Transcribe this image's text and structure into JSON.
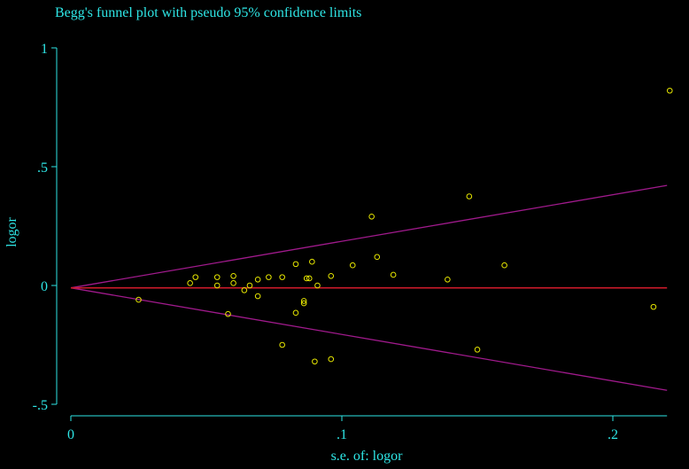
{
  "colors": {
    "background": "#000000",
    "text": "#2ee6e6",
    "axis": "#2ee6e6",
    "points": "#e6e600",
    "pooled_line": "#cc1a2a",
    "ci_lines": "#a01a8c"
  },
  "chart_data": {
    "type": "scatter",
    "title": "Begg's funnel plot with pseudo 95% confidence limits",
    "xlabel": "s.e. of: logor",
    "ylabel": "logor",
    "xlim": [
      0,
      0.22
    ],
    "ylim": [
      -0.5,
      1
    ],
    "x_ticks": [
      0,
      0.1,
      0.2
    ],
    "x_tick_labels": [
      "0",
      ".1",
      ".2"
    ],
    "y_ticks": [
      -0.5,
      0,
      0.5,
      1
    ],
    "y_tick_labels": [
      "-.5",
      "0",
      ".5",
      "1"
    ],
    "grid": false,
    "pooled_estimate": -0.01,
    "confidence_limits": {
      "z": 1.96,
      "from_x": 0,
      "to_x": 0.22
    },
    "points": [
      {
        "x": 0.025,
        "y": -0.06
      },
      {
        "x": 0.044,
        "y": 0.01
      },
      {
        "x": 0.046,
        "y": 0.035
      },
      {
        "x": 0.054,
        "y": 0.035
      },
      {
        "x": 0.054,
        "y": 0.0
      },
      {
        "x": 0.058,
        "y": -0.12
      },
      {
        "x": 0.06,
        "y": 0.04
      },
      {
        "x": 0.06,
        "y": 0.01
      },
      {
        "x": 0.064,
        "y": -0.02
      },
      {
        "x": 0.066,
        "y": 0.0
      },
      {
        "x": 0.069,
        "y": 0.025
      },
      {
        "x": 0.069,
        "y": -0.045
      },
      {
        "x": 0.073,
        "y": 0.035
      },
      {
        "x": 0.078,
        "y": 0.035
      },
      {
        "x": 0.078,
        "y": -0.25
      },
      {
        "x": 0.083,
        "y": 0.09
      },
      {
        "x": 0.083,
        "y": -0.115
      },
      {
        "x": 0.086,
        "y": -0.065
      },
      {
        "x": 0.086,
        "y": -0.075
      },
      {
        "x": 0.087,
        "y": 0.03
      },
      {
        "x": 0.088,
        "y": 0.03
      },
      {
        "x": 0.089,
        "y": 0.1
      },
      {
        "x": 0.09,
        "y": -0.32
      },
      {
        "x": 0.091,
        "y": 0.0
      },
      {
        "x": 0.096,
        "y": 0.04
      },
      {
        "x": 0.096,
        "y": -0.31
      },
      {
        "x": 0.104,
        "y": 0.085
      },
      {
        "x": 0.111,
        "y": 0.29
      },
      {
        "x": 0.113,
        "y": 0.12
      },
      {
        "x": 0.119,
        "y": 0.045
      },
      {
        "x": 0.139,
        "y": 0.025
      },
      {
        "x": 0.147,
        "y": 0.375
      },
      {
        "x": 0.15,
        "y": -0.27
      },
      {
        "x": 0.16,
        "y": 0.085
      },
      {
        "x": 0.215,
        "y": -0.09
      },
      {
        "x": 0.221,
        "y": 0.82
      }
    ]
  }
}
